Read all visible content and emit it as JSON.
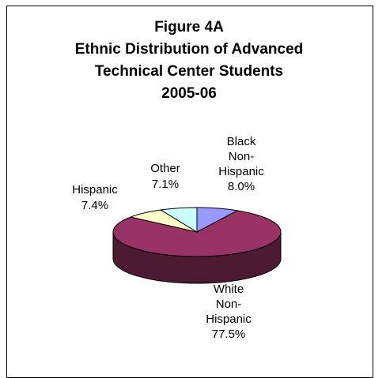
{
  "chart_data": {
    "type": "pie",
    "title_lines": [
      "Figure 4A",
      "Ethnic Distribution of Advanced",
      "Technical Center Students",
      "2005-06"
    ],
    "slices": [
      {
        "label_lines": [
          "Black",
          "Non-",
          "Hispanic",
          "8.0%"
        ],
        "value": 8.0,
        "color": "#9999ff",
        "side_color": "#4c4c80"
      },
      {
        "label_lines": [
          "White",
          "Non-",
          "Hispanic",
          "77.5%"
        ],
        "value": 77.5,
        "color": "#993366",
        "side_color": "#4d1a33"
      },
      {
        "label_lines": [
          "Hispanic",
          "7.4%"
        ],
        "value": 7.4,
        "color": "#ffffcc",
        "side_color": "#808066"
      },
      {
        "label_lines": [
          "Other",
          "7.1%"
        ],
        "value": 7.1,
        "color": "#ccffff",
        "side_color": "#668080"
      }
    ],
    "legend": "none",
    "three_d": true
  }
}
